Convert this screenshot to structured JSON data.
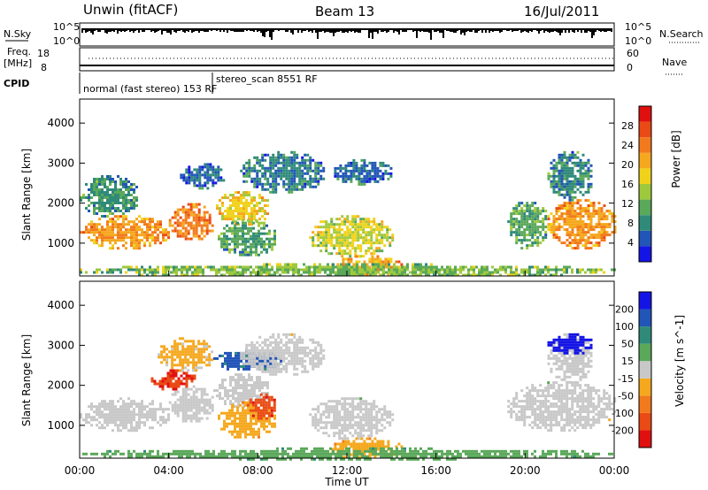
{
  "header": {
    "station": "Unwin (fitACF)",
    "beam": "Beam 13",
    "date": "16/Jul/2011"
  },
  "status_panels": {
    "nsky_label": "N.Sky",
    "nsearch_label": "N.Search",
    "nave_label": "Nave",
    "freq_label_line1": "Freq.",
    "freq_label_line2": "[MHz]",
    "cpid_label": "CPID",
    "noise_ticks": [
      "10^5",
      "10^0"
    ],
    "freq_ticks": [
      "18",
      "8"
    ],
    "nave_ticks": [
      "60",
      "0"
    ],
    "cpid_segments": [
      {
        "label": "normal (fast stereo) 153 RF",
        "start_hour": 0,
        "end_hour": 6
      },
      {
        "label": "stereo_scan 8551 RF",
        "start_hour": 6,
        "end_hour": 24
      }
    ]
  },
  "chart_data": [
    {
      "type": "heatmap",
      "title": "Power",
      "xlabel": "Time UT",
      "ylabel": "Slant Range [km]",
      "xlim_hours": [
        0,
        24
      ],
      "ylim_km": [
        180,
        4600
      ],
      "x_ticks": [
        "00:00",
        "04:00",
        "08:00",
        "12:00",
        "16:00",
        "20:00",
        "00:00"
      ],
      "y_ticks": [
        1000,
        2000,
        3000,
        4000
      ],
      "colorbar": {
        "label": "Power [dB]",
        "range": [
          0,
          32
        ],
        "ticks": [
          4,
          8,
          12,
          16,
          20,
          24,
          28
        ],
        "colors": [
          "#1414e6",
          "#2255b8",
          "#2f8a7a",
          "#5aa85a",
          "#9fc93c",
          "#f0d21a",
          "#f5a81e",
          "#f27a1c",
          "#ea4a14",
          "#e01010"
        ]
      },
      "regions": [
        {
          "t0": 0.0,
          "t1": 4.0,
          "r0": 900,
          "r1": 1700,
          "value": 22
        },
        {
          "t0": 0.0,
          "t1": 2.6,
          "r0": 1700,
          "r1": 2700,
          "value": 9
        },
        {
          "t0": 4.0,
          "t1": 6.0,
          "r0": 1100,
          "r1": 2000,
          "value": 24
        },
        {
          "t0": 6.0,
          "t1": 8.5,
          "r0": 1500,
          "r1": 2300,
          "value": 18
        },
        {
          "t0": 4.5,
          "t1": 6.5,
          "r0": 2400,
          "r1": 3000,
          "value": 6
        },
        {
          "t0": 6.2,
          "t1": 8.8,
          "r0": 700,
          "r1": 1600,
          "value": 10
        },
        {
          "t0": 7.2,
          "t1": 11.0,
          "r0": 2300,
          "r1": 3300,
          "value": 7
        },
        {
          "t0": 10.3,
          "t1": 14.0,
          "r0": 700,
          "r1": 1700,
          "value": 16
        },
        {
          "t0": 11.3,
          "t1": 14.4,
          "r0": 180,
          "r1": 700,
          "value": 21
        },
        {
          "t0": 11.3,
          "t1": 14.0,
          "r0": 2500,
          "r1": 3100,
          "value": 6
        },
        {
          "t0": 19.2,
          "t1": 21.0,
          "r0": 900,
          "r1": 2100,
          "value": 11
        },
        {
          "t0": 21.0,
          "t1": 24.0,
          "r0": 900,
          "r1": 2100,
          "value": 22
        },
        {
          "t0": 21.0,
          "t1": 23.0,
          "r0": 2100,
          "r1": 3300,
          "value": 8
        },
        {
          "t0": 0.0,
          "t1": 24.0,
          "r0": 180,
          "r1": 500,
          "value": 13
        }
      ]
    },
    {
      "type": "heatmap",
      "title": "Velocity",
      "xlabel": "Time UT",
      "ylabel": "Slant Range [km]",
      "xlim_hours": [
        0,
        24
      ],
      "ylim_km": [
        180,
        4600
      ],
      "x_ticks": [
        "00:00",
        "04:00",
        "08:00",
        "12:00",
        "16:00",
        "20:00",
        "00:00"
      ],
      "y_ticks": [
        1000,
        2000,
        3000,
        4000
      ],
      "colorbar": {
        "label": "Velocity [m s^-1]",
        "range": [
          -250,
          250
        ],
        "ticks": [
          200,
          100,
          50,
          15,
          -15,
          -50,
          -100,
          -200
        ],
        "colors": [
          "#e01010",
          "#ea4a14",
          "#f27a1c",
          "#f5a81e",
          "#c8c8c8",
          "#5aa85a",
          "#2f8a7a",
          "#2255b8",
          "#1414e6"
        ]
      },
      "regions": [
        {
          "t0": 0.0,
          "t1": 4.0,
          "r0": 900,
          "r1": 1700,
          "value": 0
        },
        {
          "t0": 4.0,
          "t1": 6.0,
          "r0": 1100,
          "r1": 2000,
          "value": 0
        },
        {
          "t0": 6.0,
          "t1": 8.5,
          "r0": 1500,
          "r1": 2300,
          "value": 0
        },
        {
          "t0": 6.2,
          "t1": 8.8,
          "r0": 700,
          "r1": 1600,
          "value": -60
        },
        {
          "t0": 7.5,
          "t1": 8.8,
          "r0": 1200,
          "r1": 1800,
          "value": -180
        },
        {
          "t0": 3.2,
          "t1": 5.2,
          "r0": 1900,
          "r1": 2400,
          "value": -190
        },
        {
          "t0": 3.5,
          "t1": 6.0,
          "r0": 2400,
          "r1": 3200,
          "value": -40
        },
        {
          "t0": 6.0,
          "t1": 9.0,
          "r0": 2400,
          "r1": 2900,
          "value": 150
        },
        {
          "t0": 7.2,
          "t1": 11.0,
          "r0": 2300,
          "r1": 3300,
          "value": 0
        },
        {
          "t0": 10.3,
          "t1": 14.0,
          "r0": 700,
          "r1": 1700,
          "value": 0
        },
        {
          "t0": 11.3,
          "t1": 14.4,
          "r0": 180,
          "r1": 700,
          "value": -60
        },
        {
          "t0": 19.2,
          "t1": 24.0,
          "r0": 900,
          "r1": 2100,
          "value": 0
        },
        {
          "t0": 21.0,
          "t1": 23.0,
          "r0": 2100,
          "r1": 3300,
          "value": 0
        },
        {
          "t0": 21.0,
          "t1": 23.0,
          "r0": 2800,
          "r1": 3300,
          "value": 220
        },
        {
          "t0": 0.0,
          "t1": 24.0,
          "r0": 180,
          "r1": 450,
          "value": 60
        }
      ]
    }
  ]
}
